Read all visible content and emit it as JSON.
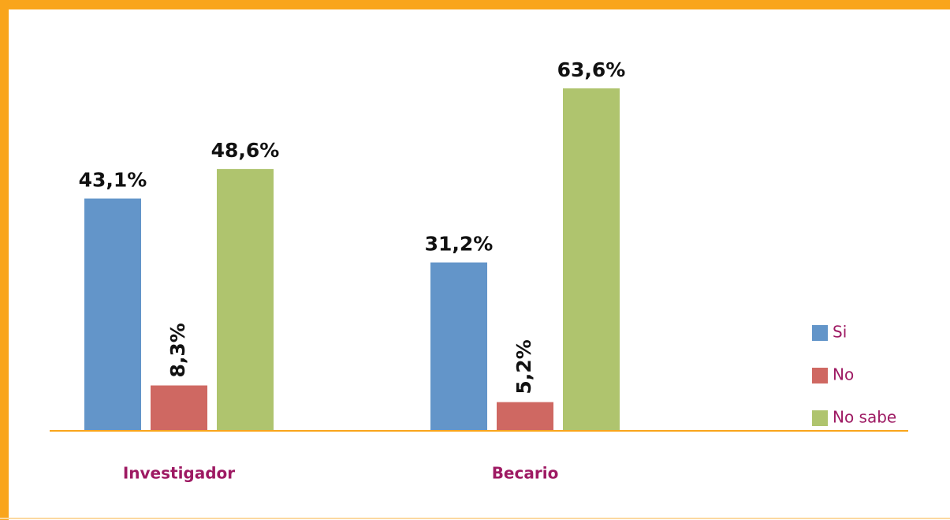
{
  "chart_data": {
    "type": "bar",
    "categories": [
      "Investigador",
      "Becario"
    ],
    "series": [
      {
        "name": "Si",
        "color": "#6395c9",
        "values": [
          43.1,
          31.2
        ],
        "value_labels": [
          "43,1%",
          "31,2%"
        ]
      },
      {
        "name": "No",
        "color": "#cf6862",
        "values": [
          8.3,
          5.2
        ],
        "value_labels": [
          "8,3%",
          "5,2%"
        ]
      },
      {
        "name": "No sabe",
        "color": "#afc46e",
        "values": [
          48.6,
          63.6
        ],
        "value_labels": [
          "48,6%",
          "63,6%"
        ]
      }
    ],
    "legend": "right"
  }
}
